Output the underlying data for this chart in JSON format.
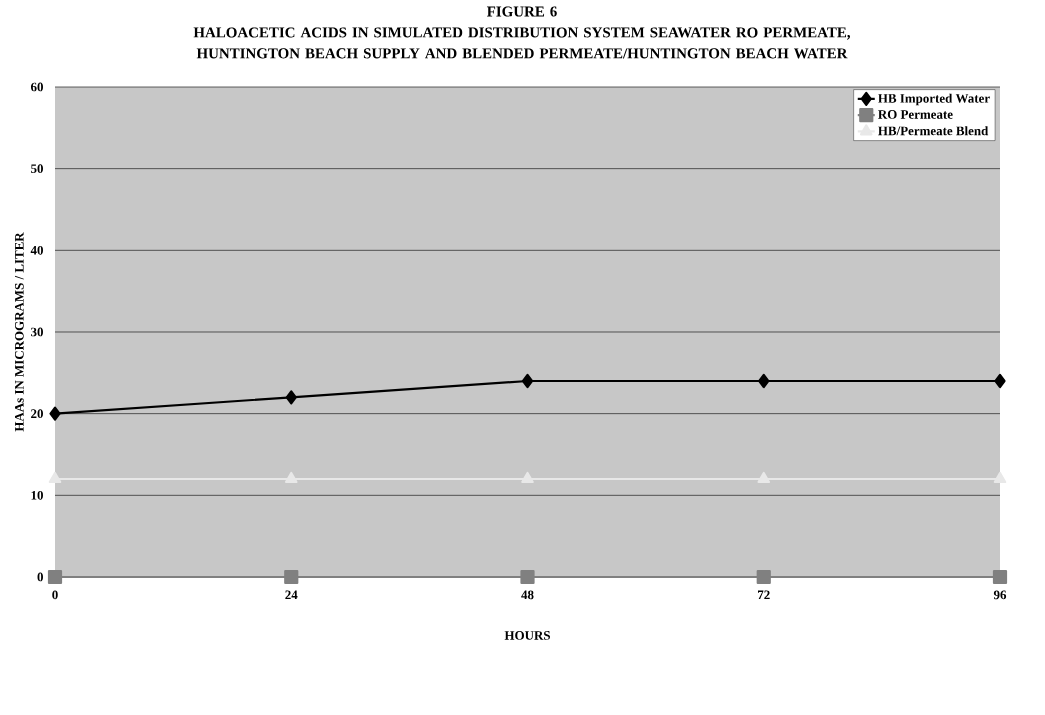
{
  "chart_data": {
    "type": "line",
    "title": "FIGURE 6",
    "subtitle": "HALOACETIC ACIDS IN SIMULATED DISTRIBUTION SYSTEM SEAWATER RO PERMEATE, HUNTINGTON BEACH SUPPLY AND BLENDED PERMEATE/HUNTINGTON BEACH WATER",
    "xlabel": "HOURS",
    "ylabel": "HAAs IN MICROGRAMS / LITER",
    "x": [
      0,
      24,
      48,
      72,
      96
    ],
    "xlim": [
      0,
      96
    ],
    "xticks": [
      0,
      24,
      48,
      72,
      96
    ],
    "series": [
      {
        "name": "HB Imported Water",
        "color": "#000000",
        "marker": "diamond",
        "values": [
          20,
          22,
          24,
          24,
          24
        ]
      },
      {
        "name": "RO Permeate",
        "color": "#808080",
        "marker": "square",
        "values": [
          0,
          0,
          0,
          0,
          0
        ]
      },
      {
        "name": "HB/Permeate Blend",
        "color": "#e8e8e8",
        "marker": "triangle",
        "values": [
          12,
          12,
          12,
          12,
          12
        ]
      }
    ],
    "ylim": [
      0,
      60
    ],
    "yticks": [
      0,
      10,
      20,
      30,
      40,
      50,
      60
    ],
    "grid": "y",
    "legend": "top right",
    "line_style": "solid"
  }
}
